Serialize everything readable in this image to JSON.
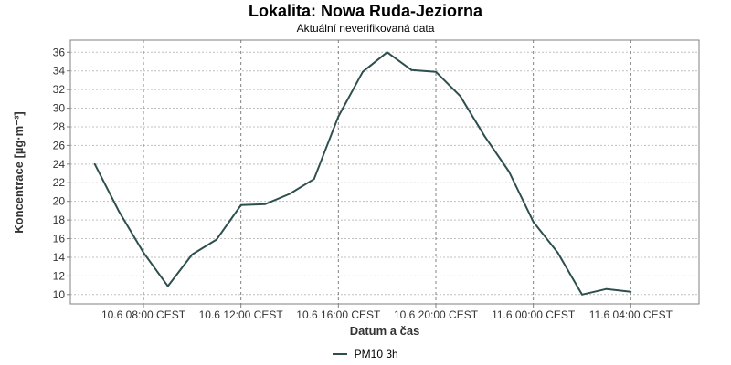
{
  "chart_data": {
    "type": "line",
    "title": "Lokalita: Nowa Ruda-Jeziorna",
    "subtitle": "Aktuální neverifikovaná data",
    "xlabel": "Datum a čas",
    "ylabel": "Koncentrace [µg·m⁻³]",
    "ylim": [
      9,
      37.3
    ],
    "y_ticks": [
      10,
      12,
      14,
      16,
      18,
      20,
      22,
      24,
      26,
      28,
      30,
      32,
      34,
      36
    ],
    "x_ticks": [
      {
        "hour": 8,
        "label": "10.6 08:00 CEST"
      },
      {
        "hour": 12,
        "label": "10.6 12:00 CEST"
      },
      {
        "hour": 16,
        "label": "10.6 16:00 CEST"
      },
      {
        "hour": 20,
        "label": "10.6 20:00 CEST"
      },
      {
        "hour": 24,
        "label": "11.6 00:00 CEST"
      },
      {
        "hour": 28,
        "label": "11.6 04:00 CEST"
      }
    ],
    "xlim_hours": [
      5.0,
      30.8
    ],
    "x_unit": "hours since 10.6 00:00 CEST",
    "grid": true,
    "legend_position": "bottom-center",
    "series": [
      {
        "name": "PM10 3h",
        "color": "#2f4f4f",
        "x": [
          6,
          7,
          8,
          9,
          10,
          11,
          12,
          13,
          14,
          15,
          16,
          17,
          18,
          19,
          20,
          21,
          22,
          23,
          24,
          25,
          26,
          27,
          28
        ],
        "values": [
          24.0,
          18.9,
          14.5,
          10.9,
          14.3,
          15.9,
          19.6,
          19.7,
          20.8,
          22.4,
          29.1,
          33.9,
          36.0,
          34.1,
          33.9,
          31.3,
          27.0,
          23.2,
          17.8,
          14.5,
          10.0,
          10.6,
          10.3
        ]
      }
    ]
  },
  "colors": {
    "line": "#2f4f4f",
    "grid": "#c0c0c0",
    "axis": "#808080"
  }
}
